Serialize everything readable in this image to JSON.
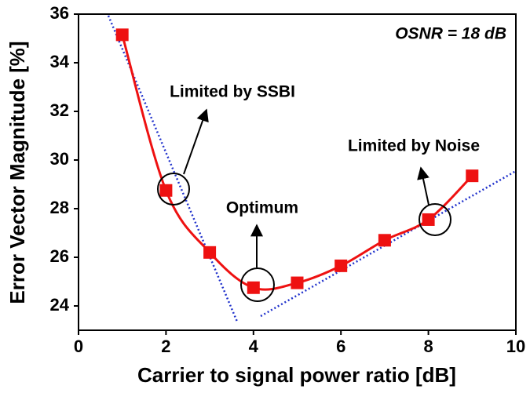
{
  "chart_data": {
    "type": "line",
    "x_label": "Carrier to signal power ratio [dB]",
    "y_label": "Error Vector Magnitude [%]",
    "annotations": [
      "OSNR = 18 dB",
      "Limited by SSBI",
      "Optimum",
      "Limited by Noise"
    ],
    "x": [
      1,
      2,
      3,
      4,
      5,
      6,
      7,
      8,
      9
    ],
    "series": [
      {
        "color": "#ee1111",
        "values": [
          35.15,
          28.75,
          26.2,
          24.75,
          24.95,
          25.65,
          26.7,
          27.55,
          29.35
        ]
      }
    ],
    "xlim": [
      0,
      10
    ],
    "xticks": [
      0,
      2,
      4,
      6,
      8,
      10
    ],
    "ylim": [
      23,
      36
    ],
    "yticks": [
      24,
      26,
      28,
      30,
      32,
      34,
      36
    ]
  }
}
